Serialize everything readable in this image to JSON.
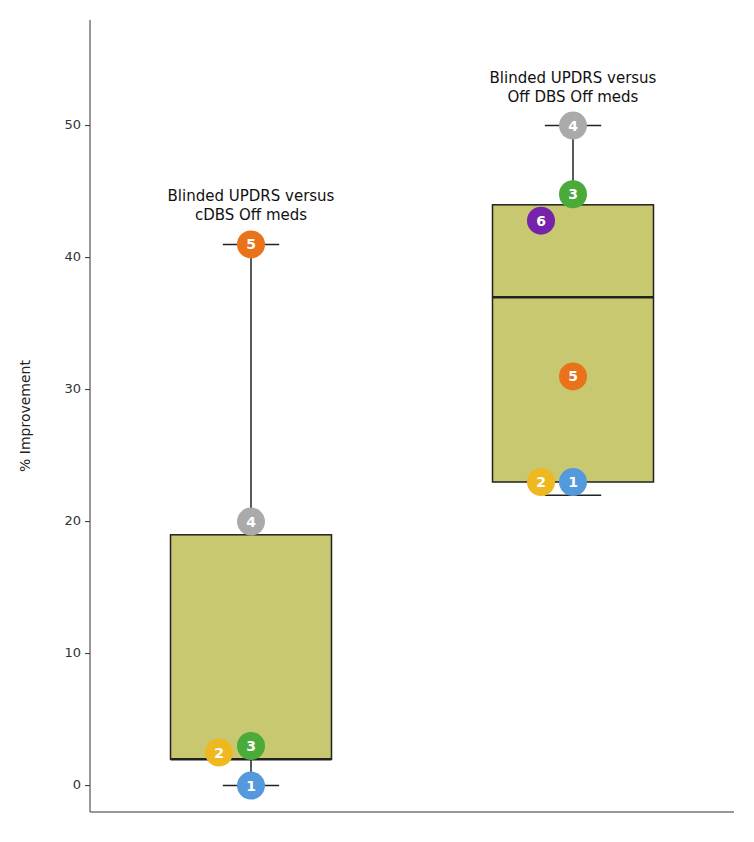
{
  "chart_data": {
    "type": "box",
    "ylabel": "% Improvement",
    "ylim": [
      -2,
      58
    ],
    "yticks": [
      0,
      10,
      20,
      30,
      40,
      50
    ],
    "color": "#C8C870",
    "boxes": [
      {
        "title": "Blinded UPDRS versus\ncDBS Off meds",
        "q1": 2,
        "median": 2,
        "q3": 19,
        "whisker_low": 0,
        "whisker_high": 41,
        "points": {
          "labels": [
            "5",
            "4",
            "3",
            "2",
            "1"
          ],
          "colors": [
            "#E8731A",
            "#AAAAAA",
            "#4AAA3A",
            "#F0B820",
            "#5599DD"
          ],
          "values": [
            41,
            20,
            3,
            2.5,
            0
          ]
        }
      },
      {
        "title": "Blinded UPDRS versus\nOff DBS Off meds",
        "q1": 23,
        "median": 37,
        "q3": 44,
        "whisker_low": 22,
        "whisker_high": 50,
        "points": {
          "labels": [
            "4",
            "3",
            "6",
            "5",
            "1",
            "2"
          ],
          "colors": [
            "#AAAAAA",
            "#4AAA3A",
            "#7722AA",
            "#E8731A",
            "#5599DD",
            "#F0B820"
          ],
          "values": [
            50,
            44.8,
            42.8,
            31,
            23,
            23
          ]
        }
      }
    ]
  }
}
